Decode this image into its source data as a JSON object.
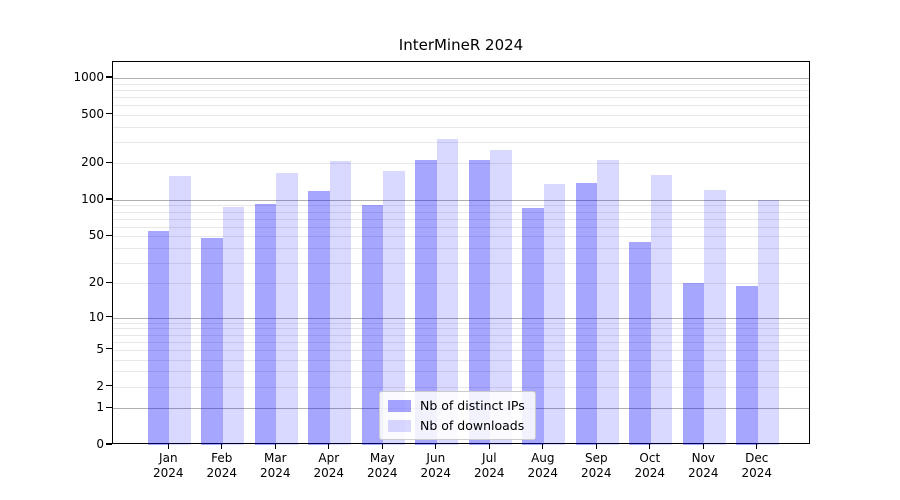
{
  "chart_data": {
    "type": "bar",
    "title": "InterMineR 2024",
    "scale": "log1p",
    "categories": [
      "Jan",
      "Feb",
      "Mar",
      "Apr",
      "May",
      "Jun",
      "Jul",
      "Aug",
      "Sep",
      "Oct",
      "Nov",
      "Dec"
    ],
    "year_label": "2024",
    "series": [
      {
        "name": "Nb of distinct IPs",
        "color": "rgba(0,0,255,0.35)",
        "values": [
          55,
          48,
          93,
          118,
          90,
          215,
          215,
          86,
          138,
          45,
          20,
          19
        ]
      },
      {
        "name": "Nb of downloads",
        "color": "rgba(0,0,255,0.15)",
        "values": [
          158,
          88,
          168,
          210,
          172,
          320,
          258,
          135,
          212,
          160,
          120,
          100
        ]
      }
    ],
    "y_ticks": [
      0,
      1,
      2,
      5,
      10,
      20,
      50,
      100,
      200,
      500,
      1000
    ],
    "ylim": [
      0,
      1380
    ],
    "xlabel": "",
    "ylabel": "",
    "grid": true,
    "legend_position": "lower-center-inside",
    "colors": {
      "bar_distinct_ips": "rgba(0,0,255,0.35)",
      "bar_downloads": "rgba(0,0,255,0.15)",
      "grid_major": "#b0b0b0",
      "grid_minor": "#e8e8e8",
      "axis": "#000000"
    }
  }
}
